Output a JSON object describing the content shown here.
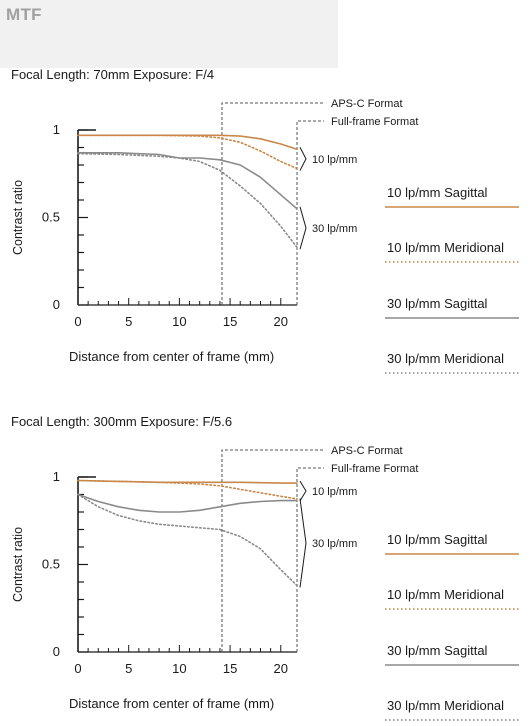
{
  "header": {
    "title": "MTF"
  },
  "colors": {
    "sagittal10": "#c8884a",
    "meridional10": "#c8884a",
    "sagittal30": "#8a8a8a",
    "meridional30": "#8a8a8a",
    "axis": "#1a1a1a",
    "guide": "#555555"
  },
  "chart_data": [
    {
      "type": "line",
      "title": "Focal Length: 70mm   Exposure: F/4",
      "xlabel": "Distance from center of frame (mm)",
      "ylabel": "Contrast ratio",
      "xlim": [
        0,
        21.6
      ],
      "ylim": [
        0,
        1
      ],
      "xticks": [
        "0",
        "5",
        "10",
        "15",
        "20"
      ],
      "yticks": [
        "0",
        "0.5",
        "1"
      ],
      "legend_position": "right",
      "guides": [
        {
          "label": "APS-C Format",
          "x": 14.2
        },
        {
          "label": "Full-frame Format",
          "x": 21.6
        }
      ],
      "brackets": [
        "10 lp/mm",
        "30 lp/mm"
      ],
      "series": [
        {
          "name": "10 lp/mm Sagittal",
          "style": "solid",
          "color": "#c8884a",
          "x": [
            0,
            4,
            8,
            12,
            14,
            16,
            18,
            20,
            21.6
          ],
          "y": [
            0.97,
            0.97,
            0.97,
            0.97,
            0.97,
            0.965,
            0.95,
            0.92,
            0.89
          ]
        },
        {
          "name": "10 lp/mm Meridional",
          "style": "dotted",
          "color": "#c8884a",
          "x": [
            0,
            4,
            8,
            12,
            14,
            16,
            18,
            20,
            21.6
          ],
          "y": [
            0.97,
            0.97,
            0.97,
            0.965,
            0.955,
            0.93,
            0.88,
            0.82,
            0.78
          ]
        },
        {
          "name": "30 lp/mm Sagittal",
          "style": "solid",
          "color": "#8a8a8a",
          "x": [
            0,
            4,
            8,
            10,
            12,
            14,
            16,
            18,
            20,
            21.6
          ],
          "y": [
            0.87,
            0.87,
            0.86,
            0.84,
            0.84,
            0.83,
            0.8,
            0.73,
            0.63,
            0.55
          ]
        },
        {
          "name": "30 lp/mm Meridional",
          "style": "dotted",
          "color": "#8a8a8a",
          "x": [
            0,
            4,
            8,
            10,
            12,
            14,
            16,
            18,
            20,
            21.6
          ],
          "y": [
            0.865,
            0.86,
            0.85,
            0.84,
            0.82,
            0.77,
            0.68,
            0.58,
            0.45,
            0.33
          ]
        }
      ]
    },
    {
      "type": "line",
      "title": "Focal Length: 300mm   Exposure: F/5.6",
      "xlabel": "Distance from center of frame (mm)",
      "ylabel": "Contrast ratio",
      "xlim": [
        0,
        21.6
      ],
      "ylim": [
        0,
        1
      ],
      "xticks": [
        "0",
        "5",
        "10",
        "15",
        "20"
      ],
      "yticks": [
        "0",
        "0.5",
        "1"
      ],
      "legend_position": "right",
      "guides": [
        {
          "label": "APS-C Format",
          "x": 14.2
        },
        {
          "label": "Full-frame Format",
          "x": 21.6
        }
      ],
      "brackets": [
        "10 lp/mm",
        "30 lp/mm"
      ],
      "series": [
        {
          "name": "10 lp/mm Sagittal",
          "style": "solid",
          "color": "#c8884a",
          "x": [
            0,
            4,
            8,
            12,
            16,
            20,
            21.6
          ],
          "y": [
            0.98,
            0.975,
            0.97,
            0.97,
            0.97,
            0.965,
            0.965
          ]
        },
        {
          "name": "10 lp/mm Meridional",
          "style": "dotted",
          "color": "#c8884a",
          "x": [
            0,
            4,
            8,
            12,
            14,
            16,
            18,
            20,
            21.6
          ],
          "y": [
            0.98,
            0.975,
            0.97,
            0.96,
            0.95,
            0.93,
            0.91,
            0.89,
            0.875
          ]
        },
        {
          "name": "30 lp/mm Sagittal",
          "style": "solid",
          "color": "#8a8a8a",
          "x": [
            0,
            2,
            4,
            6,
            8,
            10,
            12,
            14,
            16,
            18,
            20,
            21.6
          ],
          "y": [
            0.9,
            0.86,
            0.83,
            0.81,
            0.8,
            0.8,
            0.81,
            0.83,
            0.85,
            0.86,
            0.865,
            0.865
          ]
        },
        {
          "name": "30 lp/mm Meridional",
          "style": "dotted",
          "color": "#8a8a8a",
          "x": [
            0,
            2,
            4,
            6,
            8,
            10,
            12,
            14,
            16,
            18,
            20,
            21.6
          ],
          "y": [
            0.9,
            0.83,
            0.78,
            0.75,
            0.73,
            0.72,
            0.71,
            0.7,
            0.66,
            0.59,
            0.47,
            0.38
          ]
        }
      ]
    }
  ]
}
